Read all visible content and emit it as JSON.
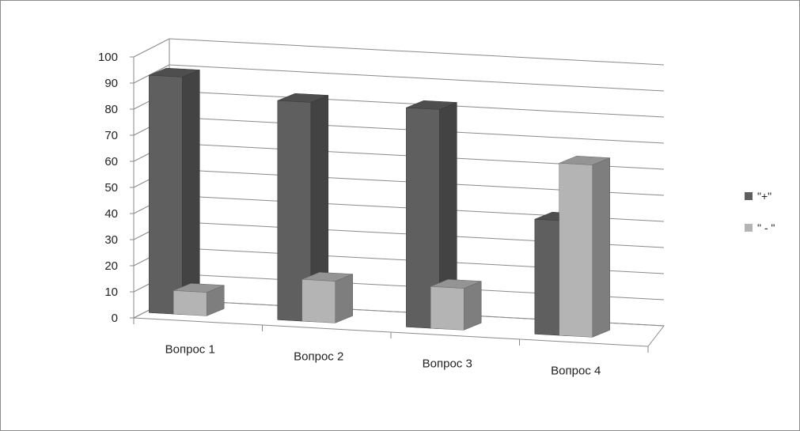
{
  "chart_data": {
    "type": "bar",
    "categories": [
      "Вопрос 1",
      "Вопрос 2",
      "Вопрос 3",
      "Вопрос 4"
    ],
    "series": [
      {
        "name": "\"+\"",
        "values": [
          91,
          84,
          84,
          44
        ],
        "color": "#5f5f5f"
      },
      {
        "name": "\" - \"",
        "values": [
          9,
          16,
          16,
          66
        ],
        "color": "#b4b4b4"
      }
    ],
    "y_ticks": [
      "0",
      "10",
      "20",
      "30",
      "40",
      "50",
      "60",
      "70",
      "80",
      "90",
      "100"
    ],
    "ylim": [
      0,
      100
    ],
    "grid": true,
    "legend_position": "right",
    "three_d": true
  }
}
